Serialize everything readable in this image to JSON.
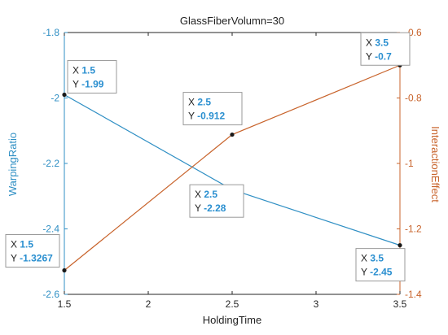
{
  "chart_data": {
    "type": "line",
    "title": "GlassFiberVolumn=30",
    "xlabel": "HoldingTime",
    "x": [
      1.5,
      2.5,
      3.5
    ],
    "xticks": [
      "1.5",
      "2",
      "2.5",
      "3",
      "3.5"
    ],
    "xlim": [
      1.5,
      3.5
    ],
    "left_axis": {
      "label": "WarpingRatio",
      "color": "#2f8fc4",
      "ylim": [
        -2.6,
        -1.8
      ],
      "ticks": [
        "-1.8",
        "-2",
        "-2.2",
        "-2.4",
        "-2.6"
      ]
    },
    "right_axis": {
      "label": "InteractionEffect",
      "color": "#c8632b",
      "ylim": [
        -1.4,
        -0.6
      ],
      "ticks": [
        "-0.6",
        "-0.8",
        "-1",
        "-1.2",
        "-1.4"
      ]
    },
    "series": [
      {
        "axis": "left",
        "color": "#2f8fc4",
        "values": [
          -1.99,
          -2.28,
          -2.45
        ]
      },
      {
        "axis": "right",
        "color": "#c8632b",
        "values": [
          -1.3267,
          -0.912,
          -0.7
        ]
      }
    ],
    "datatips": [
      {
        "x": "1.5",
        "y": "-1.99"
      },
      {
        "x": "2.5",
        "y": "-2.28"
      },
      {
        "x": "3.5",
        "y": "-2.45"
      },
      {
        "x": "1.5",
        "y": "-1.3267"
      },
      {
        "x": "2.5",
        "y": "-0.912"
      },
      {
        "x": "3.5",
        "y": "-0.7"
      }
    ],
    "datatip_label_x": "X",
    "datatip_label_y": "Y",
    "value_color": "#2a8fd0",
    "grid": false,
    "legend": "none"
  }
}
